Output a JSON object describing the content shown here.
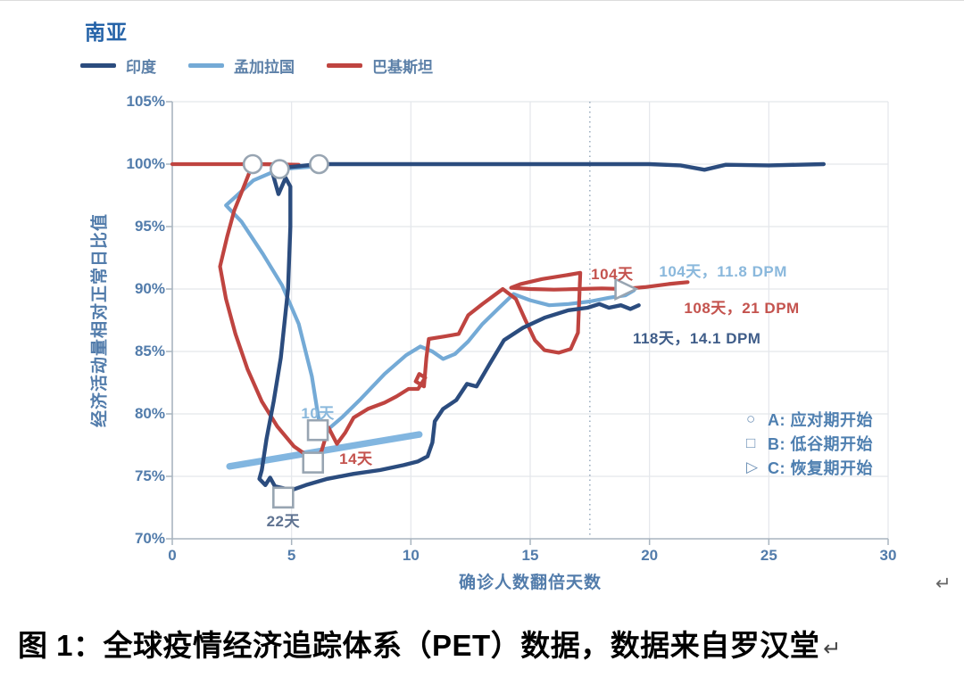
{
  "figure_title": "南亚",
  "chart_data": {
    "type": "line",
    "title": "南亚",
    "xlabel": "确诊人数翻倍天数",
    "ylabel": "经济活动量相对正常日比值",
    "xlim": [
      0,
      30
    ],
    "ylim": [
      70,
      105
    ],
    "x_ticks": [
      0,
      5,
      10,
      15,
      20,
      25,
      30
    ],
    "y_ticks": [
      "105%",
      "100%",
      "95%",
      "90%",
      "85%",
      "80%",
      "75%",
      "70%"
    ],
    "y_tick_values": [
      105,
      100,
      95,
      90,
      85,
      80,
      75,
      70
    ],
    "grid": true,
    "reference_line_x": 17.5,
    "legend": [
      {
        "label": "印度",
        "color": "#2b4c7e"
      },
      {
        "label": "孟加拉国",
        "color": "#74aad6"
      },
      {
        "label": "巴基斯坦",
        "color": "#bf4440"
      }
    ],
    "series": [
      {
        "name": "孟加拉国-低谷趋势段",
        "color": "#82b6e0",
        "width": 7.5,
        "points": [
          [
            2.4,
            75.8
          ],
          [
            10.35,
            78.35
          ]
        ]
      },
      {
        "name": "孟加拉国",
        "color": "#74aad6",
        "width": 4.2,
        "points": [
          [
            5.9,
            99.8
          ],
          [
            4.5,
            99.6
          ],
          [
            3.4,
            98.7
          ],
          [
            2.6,
            97.3
          ],
          [
            2.25,
            96.7
          ],
          [
            2.9,
            95.4
          ],
          [
            3.8,
            92.8
          ],
          [
            4.6,
            90.3
          ],
          [
            5.3,
            87.2
          ],
          [
            5.85,
            83.0
          ],
          [
            6.1,
            80.0
          ],
          [
            6.2,
            79.0
          ],
          [
            6.55,
            78.8
          ],
          [
            7.1,
            79.7
          ],
          [
            7.9,
            81.2
          ],
          [
            8.9,
            83.2
          ],
          [
            9.8,
            84.7
          ],
          [
            10.4,
            85.4
          ],
          [
            10.9,
            85.0
          ],
          [
            11.35,
            84.4
          ],
          [
            11.85,
            84.8
          ],
          [
            12.4,
            85.8
          ],
          [
            13.0,
            87.2
          ],
          [
            13.7,
            88.5
          ],
          [
            14.3,
            89.6
          ],
          [
            15.0,
            89.1
          ],
          [
            15.8,
            88.7
          ],
          [
            16.6,
            88.8
          ],
          [
            17.5,
            89.0
          ],
          [
            18.3,
            89.3
          ],
          [
            19.0,
            89.5
          ],
          [
            19.35,
            89.9
          ]
        ]
      },
      {
        "name": "巴基斯坦",
        "color": "#bf4440",
        "width": 4.2,
        "points": [
          [
            0,
            100
          ],
          [
            2,
            100
          ],
          [
            4,
            100
          ],
          [
            5.3,
            99.95
          ],
          [
            3.37,
            100
          ],
          [
            3.0,
            98.2
          ],
          [
            2.6,
            96.3
          ],
          [
            2.3,
            94.2
          ],
          [
            2.0,
            91.8
          ],
          [
            2.25,
            89.2
          ],
          [
            2.65,
            86.4
          ],
          [
            3.15,
            83.6
          ],
          [
            3.75,
            81.0
          ],
          [
            4.4,
            79.0
          ],
          [
            5.1,
            77.4
          ],
          [
            5.7,
            76.6
          ],
          [
            5.95,
            76.3
          ],
          [
            6.25,
            77.0
          ],
          [
            6.55,
            78.9
          ],
          [
            6.9,
            77.6
          ],
          [
            7.25,
            78.5
          ],
          [
            7.6,
            79.7
          ],
          [
            8.2,
            80.4
          ],
          [
            8.9,
            80.9
          ],
          [
            9.4,
            81.4
          ],
          [
            9.9,
            82.0
          ],
          [
            10.3,
            82.0
          ],
          [
            10.6,
            82.9
          ],
          [
            10.35,
            83.2
          ],
          [
            10.2,
            82.6
          ],
          [
            10.55,
            82.2
          ],
          [
            10.65,
            84.5
          ],
          [
            10.75,
            86.0
          ],
          [
            11.4,
            86.2
          ],
          [
            12.0,
            86.4
          ],
          [
            12.4,
            87.9
          ],
          [
            13.0,
            88.8
          ],
          [
            13.85,
            90.0
          ],
          [
            14.4,
            89.2
          ],
          [
            14.8,
            87.5
          ],
          [
            15.2,
            85.9
          ],
          [
            15.6,
            85.1
          ],
          [
            16.2,
            84.9
          ],
          [
            16.7,
            85.2
          ],
          [
            17.0,
            86.5
          ],
          [
            17.1,
            91.3
          ],
          [
            16.5,
            91.1
          ],
          [
            15.5,
            90.8
          ],
          [
            14.6,
            90.4
          ],
          [
            14.2,
            90.1
          ],
          [
            15.0,
            90.0
          ],
          [
            16.0,
            89.95
          ],
          [
            17.0,
            90.0
          ],
          [
            18.0,
            90.05
          ],
          [
            18.9,
            90.0
          ],
          [
            19.8,
            90.15
          ],
          [
            20.8,
            90.4
          ],
          [
            21.6,
            90.55
          ]
        ]
      },
      {
        "name": "印度",
        "color": "#2b4c7e",
        "width": 4.4,
        "points": [
          [
            27.3,
            100
          ],
          [
            25.0,
            99.9
          ],
          [
            23.2,
            99.95
          ],
          [
            22.3,
            99.55
          ],
          [
            21.3,
            99.9
          ],
          [
            20.0,
            100
          ],
          [
            6.15,
            100
          ],
          [
            4.6,
            99.7
          ],
          [
            4.2,
            99.3
          ],
          [
            4.45,
            97.6
          ],
          [
            4.75,
            98.9
          ],
          [
            4.95,
            98.2
          ],
          [
            4.95,
            95.0
          ],
          [
            4.85,
            90.0
          ],
          [
            4.55,
            84.5
          ],
          [
            4.25,
            81.0
          ],
          [
            3.95,
            78.0
          ],
          [
            3.75,
            75.5
          ],
          [
            3.65,
            74.8
          ],
          [
            3.9,
            74.3
          ],
          [
            4.1,
            74.9
          ],
          [
            4.3,
            74.2
          ],
          [
            5.0,
            73.9
          ],
          [
            5.6,
            74.3
          ],
          [
            6.5,
            74.8
          ],
          [
            7.6,
            75.2
          ],
          [
            8.7,
            75.5
          ],
          [
            9.7,
            75.9
          ],
          [
            10.3,
            76.2
          ],
          [
            10.7,
            76.6
          ],
          [
            10.9,
            77.7
          ],
          [
            11.0,
            79.4
          ],
          [
            11.35,
            80.4
          ],
          [
            11.9,
            81.1
          ],
          [
            12.35,
            82.4
          ],
          [
            12.75,
            82.2
          ],
          [
            13.3,
            84.0
          ],
          [
            13.9,
            85.9
          ],
          [
            14.7,
            86.9
          ],
          [
            15.6,
            87.7
          ],
          [
            16.6,
            88.3
          ],
          [
            17.4,
            88.5
          ],
          [
            17.9,
            88.8
          ],
          [
            18.3,
            88.5
          ],
          [
            18.8,
            88.7
          ],
          [
            19.2,
            88.4
          ],
          [
            19.55,
            88.7
          ]
        ]
      }
    ],
    "markers": [
      {
        "shape": "circle",
        "x": 3.37,
        "y": 100,
        "series": "巴基斯坦",
        "phase": "A"
      },
      {
        "shape": "circle",
        "x": 4.5,
        "y": 99.6,
        "series": "孟加拉国",
        "phase": "A"
      },
      {
        "shape": "circle",
        "x": 6.15,
        "y": 100,
        "series": "印度",
        "phase": "A"
      },
      {
        "shape": "square",
        "x": 6.1,
        "y": 78.7,
        "series": "孟加拉国",
        "phase": "B"
      },
      {
        "shape": "square",
        "x": 5.9,
        "y": 76.1,
        "series": "巴基斯坦",
        "phase": "B"
      },
      {
        "shape": "square",
        "x": 4.65,
        "y": 73.3,
        "series": "印度",
        "phase": "B"
      },
      {
        "shape": "triangle",
        "x": 18.95,
        "y": 90.0,
        "series": "巴基斯坦",
        "phase": "C"
      }
    ],
    "annotations": [
      {
        "text": "104天",
        "color": "#c4534e",
        "x": 17.55,
        "y_top": 92.2
      },
      {
        "text": "104天，11.8 DPM",
        "color": "#8ab8dc",
        "x": 20.4,
        "y_top": 92.4
      },
      {
        "text": "108天，21 DPM",
        "color": "#c4534e",
        "x": 21.45,
        "y_top": 89.5
      },
      {
        "text": "118天，14.1 DPM",
        "color": "#3f5d89",
        "x": 19.3,
        "y_top": 87.1
      },
      {
        "text": "10天",
        "color": "#8ab8dc",
        "x": 5.4,
        "y_top": 81.1
      },
      {
        "text": "14天",
        "color": "#c4534e",
        "x": 7.0,
        "y_top": 77.4
      },
      {
        "text": "22天",
        "color": "#5f7391",
        "x": 3.95,
        "y_top": 72.4
      }
    ],
    "marker_legend": [
      {
        "glyph": "○",
        "label": "A: 应对期开始"
      },
      {
        "glyph": "□",
        "label": "B: 低谷期开始"
      },
      {
        "glyph": "▷",
        "label": "C: 恢复期开始"
      }
    ]
  },
  "caption": {
    "text": "图 1：全球疫情经济追踪体系（PET）数据，数据来自罗汉堂",
    "pilcrow": "↵"
  },
  "page_pilcrow": "↵",
  "colors": {
    "grid": "#e4e7eb",
    "axis": "#a8b4bf",
    "reference_line": "#90a4b8",
    "marker_stroke": "#98a5b2",
    "tick_text": "#527cab"
  }
}
